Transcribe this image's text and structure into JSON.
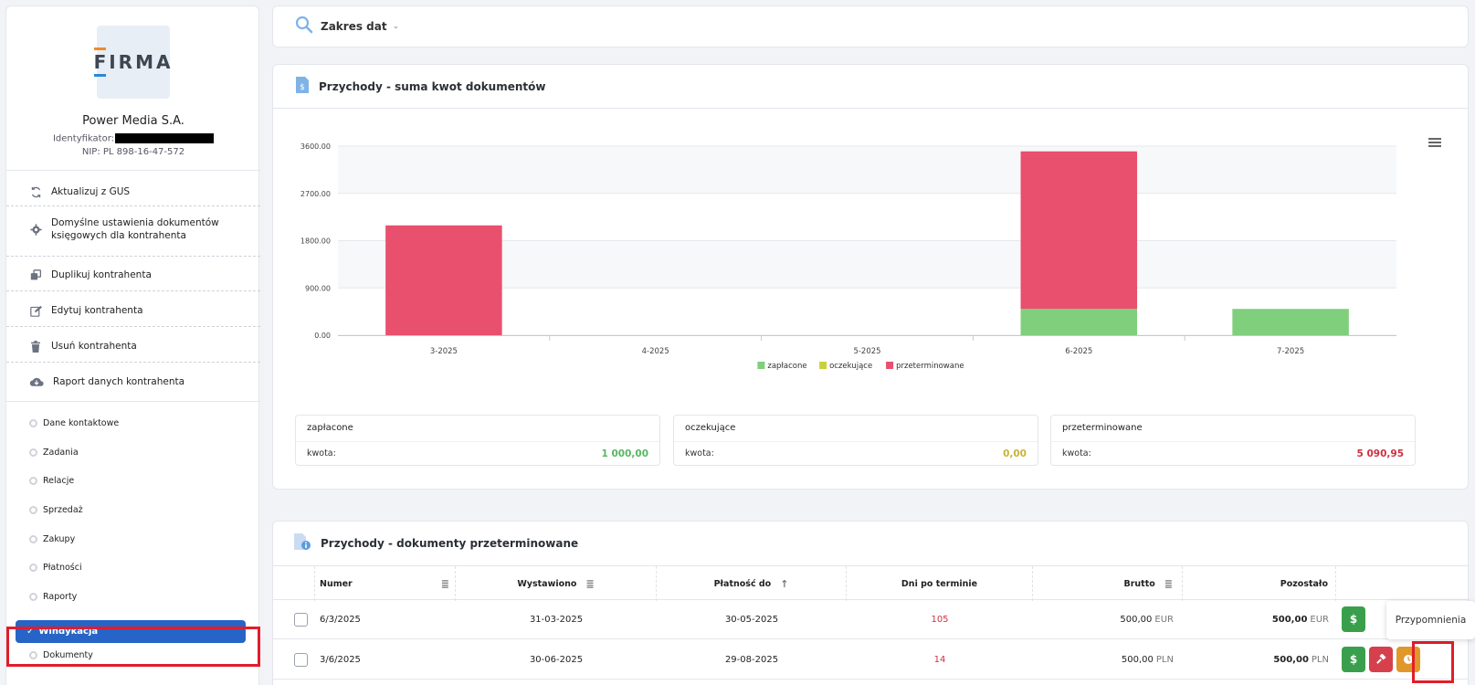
{
  "company": {
    "logo_text": "FIRMA",
    "name": "Power Media S.A.",
    "id_label": "Identyfikator:",
    "nip": "NIP: PL 898-16-47-572"
  },
  "actions": [
    {
      "label": "Aktualizuj z GUS",
      "icon": "refresh-icon"
    },
    {
      "label": "Domyślne ustawienia dokumentów księgowych dla kontrahenta",
      "icon": "gear-icon"
    },
    {
      "label": "Duplikuj kontrahenta",
      "icon": "copy-icon"
    },
    {
      "label": "Edytuj kontrahenta",
      "icon": "edit-icon"
    },
    {
      "label": "Usuń kontrahenta",
      "icon": "trash-icon"
    },
    {
      "label": "Raport danych kontrahenta",
      "icon": "cloud-download-icon"
    }
  ],
  "nav": [
    {
      "label": "Dane kontaktowe"
    },
    {
      "label": "Zadania"
    },
    {
      "label": "Relacje"
    },
    {
      "label": "Sprzedaż"
    },
    {
      "label": "Zakupy"
    },
    {
      "label": "Płatności"
    },
    {
      "label": "Raporty"
    },
    {
      "label": "Windykacja",
      "active": true
    },
    {
      "label": "Dokumenty"
    }
  ],
  "filter": {
    "label": "Zakres dat"
  },
  "chart_card": {
    "title": "Przychody - suma kwot dokumentów"
  },
  "chart_data": {
    "type": "bar",
    "stacked": true,
    "categories": [
      "3-2025",
      "4-2025",
      "5-2025",
      "6-2025",
      "7-2025"
    ],
    "series": [
      {
        "name": "zapłacone",
        "color": "#7fcf7c",
        "values": [
          0,
          0,
          0,
          500,
          500
        ]
      },
      {
        "name": "oczekujące",
        "color": "#c8d13a",
        "values": [
          0,
          0,
          0,
          0,
          0
        ]
      },
      {
        "name": "przeterminowane",
        "color": "#e8506d",
        "values": [
          2090.95,
          0,
          0,
          3000,
          0
        ]
      }
    ],
    "yticks": [
      "0.00",
      "900.00",
      "1800.00",
      "2700.00",
      "3600.00"
    ],
    "ylim": [
      0,
      3600
    ],
    "grid": true,
    "legend": "bottom"
  },
  "summaries": [
    {
      "title": "zapłacone",
      "label": "kwota:",
      "value": "1 000,00",
      "color": "#58b75f"
    },
    {
      "title": "oczekujące",
      "label": "kwota:",
      "value": "0,00",
      "color": "#c9b23a"
    },
    {
      "title": "przeterminowane",
      "label": "kwota:",
      "value": "5 090,95",
      "color": "#d03042"
    }
  ],
  "table_card": {
    "title": "Przychody - dokumenty przeterminowane"
  },
  "table": {
    "columns": [
      "Numer",
      "Wystawiono",
      "Płatność do",
      "Dni po terminie",
      "Brutto",
      "Pozostało"
    ],
    "rows": [
      {
        "numer": "6/3/2025",
        "wystawiono": "31-03-2025",
        "platnosc": "30-05-2025",
        "dni": "105",
        "brutto": "500,00",
        "brutto_cur": "EUR",
        "pozostalo": "500,00",
        "pozostalo_cur": "EUR"
      },
      {
        "numer": "3/6/2025",
        "wystawiono": "30-06-2025",
        "platnosc": "29-08-2025",
        "dni": "14",
        "brutto": "500,00",
        "brutto_cur": "PLN",
        "pozostalo": "500,00",
        "pozostalo_cur": "PLN"
      }
    ]
  },
  "tooltip": {
    "text": "Przypomnienia"
  },
  "buttons": {
    "payment_symbol": "$"
  }
}
